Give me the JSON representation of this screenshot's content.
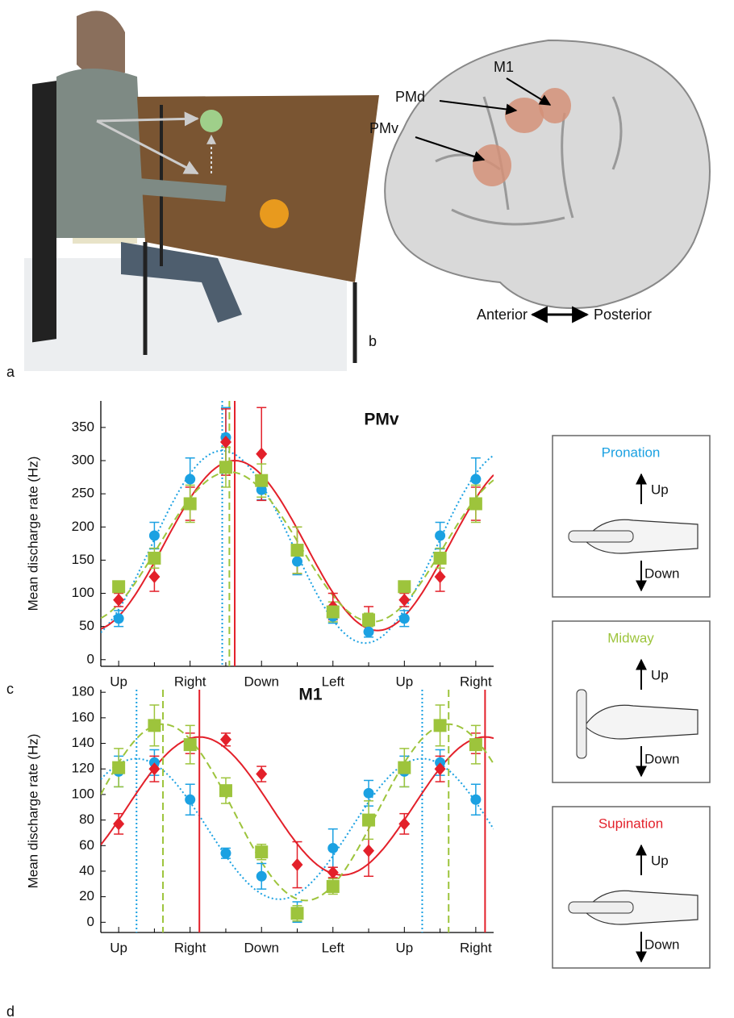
{
  "panel_a": {
    "label": "a"
  },
  "panel_b": {
    "label": "b",
    "regions": [
      "M1",
      "PMd",
      "PMv"
    ],
    "axis_left": "Anterior",
    "axis_right": "Posterior"
  },
  "legend": [
    {
      "title": "Pronation",
      "color": "#1ba1e2",
      "up": "Up",
      "down": "Down"
    },
    {
      "title": "Midway",
      "color": "#9dc43c",
      "up": "Up",
      "down": "Down"
    },
    {
      "title": "Supination",
      "color": "#e3202a",
      "up": "Up",
      "down": "Down"
    }
  ],
  "chart_data": [
    {
      "type": "scatter",
      "panel_label": "c",
      "title": "PMv",
      "y_label": "Mean discharge rate (Hz)",
      "x": [
        0,
        1,
        2,
        3,
        4,
        5,
        6,
        7,
        8,
        9,
        10
      ],
      "xlim": [
        -0.5,
        10.5
      ],
      "xticks": [
        {
          "value": 0,
          "label": "Up"
        },
        {
          "value": 2,
          "label": "Right"
        },
        {
          "value": 4,
          "label": "Down"
        },
        {
          "value": 6,
          "label": "Left"
        },
        {
          "value": 8,
          "label": "Up"
        },
        {
          "value": 10,
          "label": "Right"
        }
      ],
      "xminorticks": [
        1,
        3,
        5,
        7,
        9
      ],
      "ylim": [
        -10,
        390
      ],
      "yticks": [
        0,
        50,
        100,
        150,
        200,
        250,
        300,
        350
      ],
      "series": [
        {
          "color": "#1ba1e2",
          "marker": "circle",
          "dash": "dotted",
          "values": [
            62,
            187,
            272,
            335,
            256,
            148,
            65,
            42,
            62,
            187,
            272
          ],
          "errors": [
            12,
            20,
            32,
            45,
            15,
            20,
            10,
            8,
            12,
            20,
            32
          ],
          "fit": {
            "baseline": 170,
            "amplitude": 145
          },
          "preferred_direction": 2.9
        },
        {
          "color": "#e3202a",
          "marker": "diamond",
          "dash": "solid",
          "values": [
            90,
            125,
            235,
            328,
            310,
            165,
            80,
            60,
            90,
            125,
            235
          ],
          "errors": [
            10,
            22,
            25,
            50,
            70,
            35,
            20,
            20,
            10,
            22,
            25
          ],
          "fit": {
            "baseline": 172,
            "amplitude": 128
          },
          "preferred_direction": 3.25
        },
        {
          "color": "#9dc43c",
          "marker": "square",
          "dash": "dashed",
          "values": [
            110,
            153,
            235,
            290,
            270,
            165,
            72,
            60,
            110,
            153,
            235
          ],
          "errors": [
            8,
            15,
            28,
            30,
            25,
            35,
            15,
            10,
            8,
            15,
            28
          ],
          "fit": {
            "baseline": 170,
            "amplitude": 113
          },
          "preferred_direction": 3.1
        }
      ]
    },
    {
      "type": "scatter",
      "panel_label": "d",
      "title": "M1",
      "y_label": "Mean discharge rate (Hz)",
      "x": [
        0,
        1,
        2,
        3,
        4,
        5,
        6,
        7,
        8,
        9,
        10
      ],
      "xlim": [
        -0.5,
        10.5
      ],
      "xticks": [
        {
          "value": 0,
          "label": "Up"
        },
        {
          "value": 2,
          "label": "Right"
        },
        {
          "value": 4,
          "label": "Down"
        },
        {
          "value": 6,
          "label": "Left"
        },
        {
          "value": 8,
          "label": "Up"
        },
        {
          "value": 10,
          "label": "Right"
        }
      ],
      "xminorticks": [
        1,
        3,
        5,
        7,
        9
      ],
      "ylim": [
        -8,
        182
      ],
      "yticks": [
        0,
        20,
        40,
        60,
        80,
        100,
        120,
        140,
        160,
        180
      ],
      "series": [
        {
          "color": "#1ba1e2",
          "marker": "circle",
          "dash": "dotted",
          "values": [
            118,
            125,
            96,
            54,
            36,
            8,
            58,
            101,
            118,
            125,
            96
          ],
          "errors": [
            12,
            10,
            12,
            4,
            10,
            8,
            15,
            10,
            12,
            10,
            12
          ],
          "fit": {
            "baseline": 73,
            "amplitude": 55
          },
          "preferred_direction": 0.5
        },
        {
          "color": "#e3202a",
          "marker": "diamond",
          "dash": "solid",
          "values": [
            77,
            120,
            140,
            143,
            116,
            45,
            39,
            56,
            77,
            120,
            140
          ],
          "errors": [
            8,
            10,
            8,
            5,
            6,
            18,
            4,
            20,
            8,
            10,
            8
          ],
          "fit": {
            "baseline": 91,
            "amplitude": 54
          },
          "preferred_direction": 2.26
        },
        {
          "color": "#9dc43c",
          "marker": "square",
          "dash": "dashed",
          "values": [
            121,
            154,
            139,
            103,
            55,
            7,
            28,
            80,
            121,
            154,
            139
          ],
          "errors": [
            15,
            16,
            15,
            10,
            6,
            6,
            6,
            15,
            15,
            16,
            15
          ],
          "fit": {
            "baseline": 86,
            "amplitude": 69
          },
          "preferred_direction": 1.24
        }
      ]
    }
  ]
}
